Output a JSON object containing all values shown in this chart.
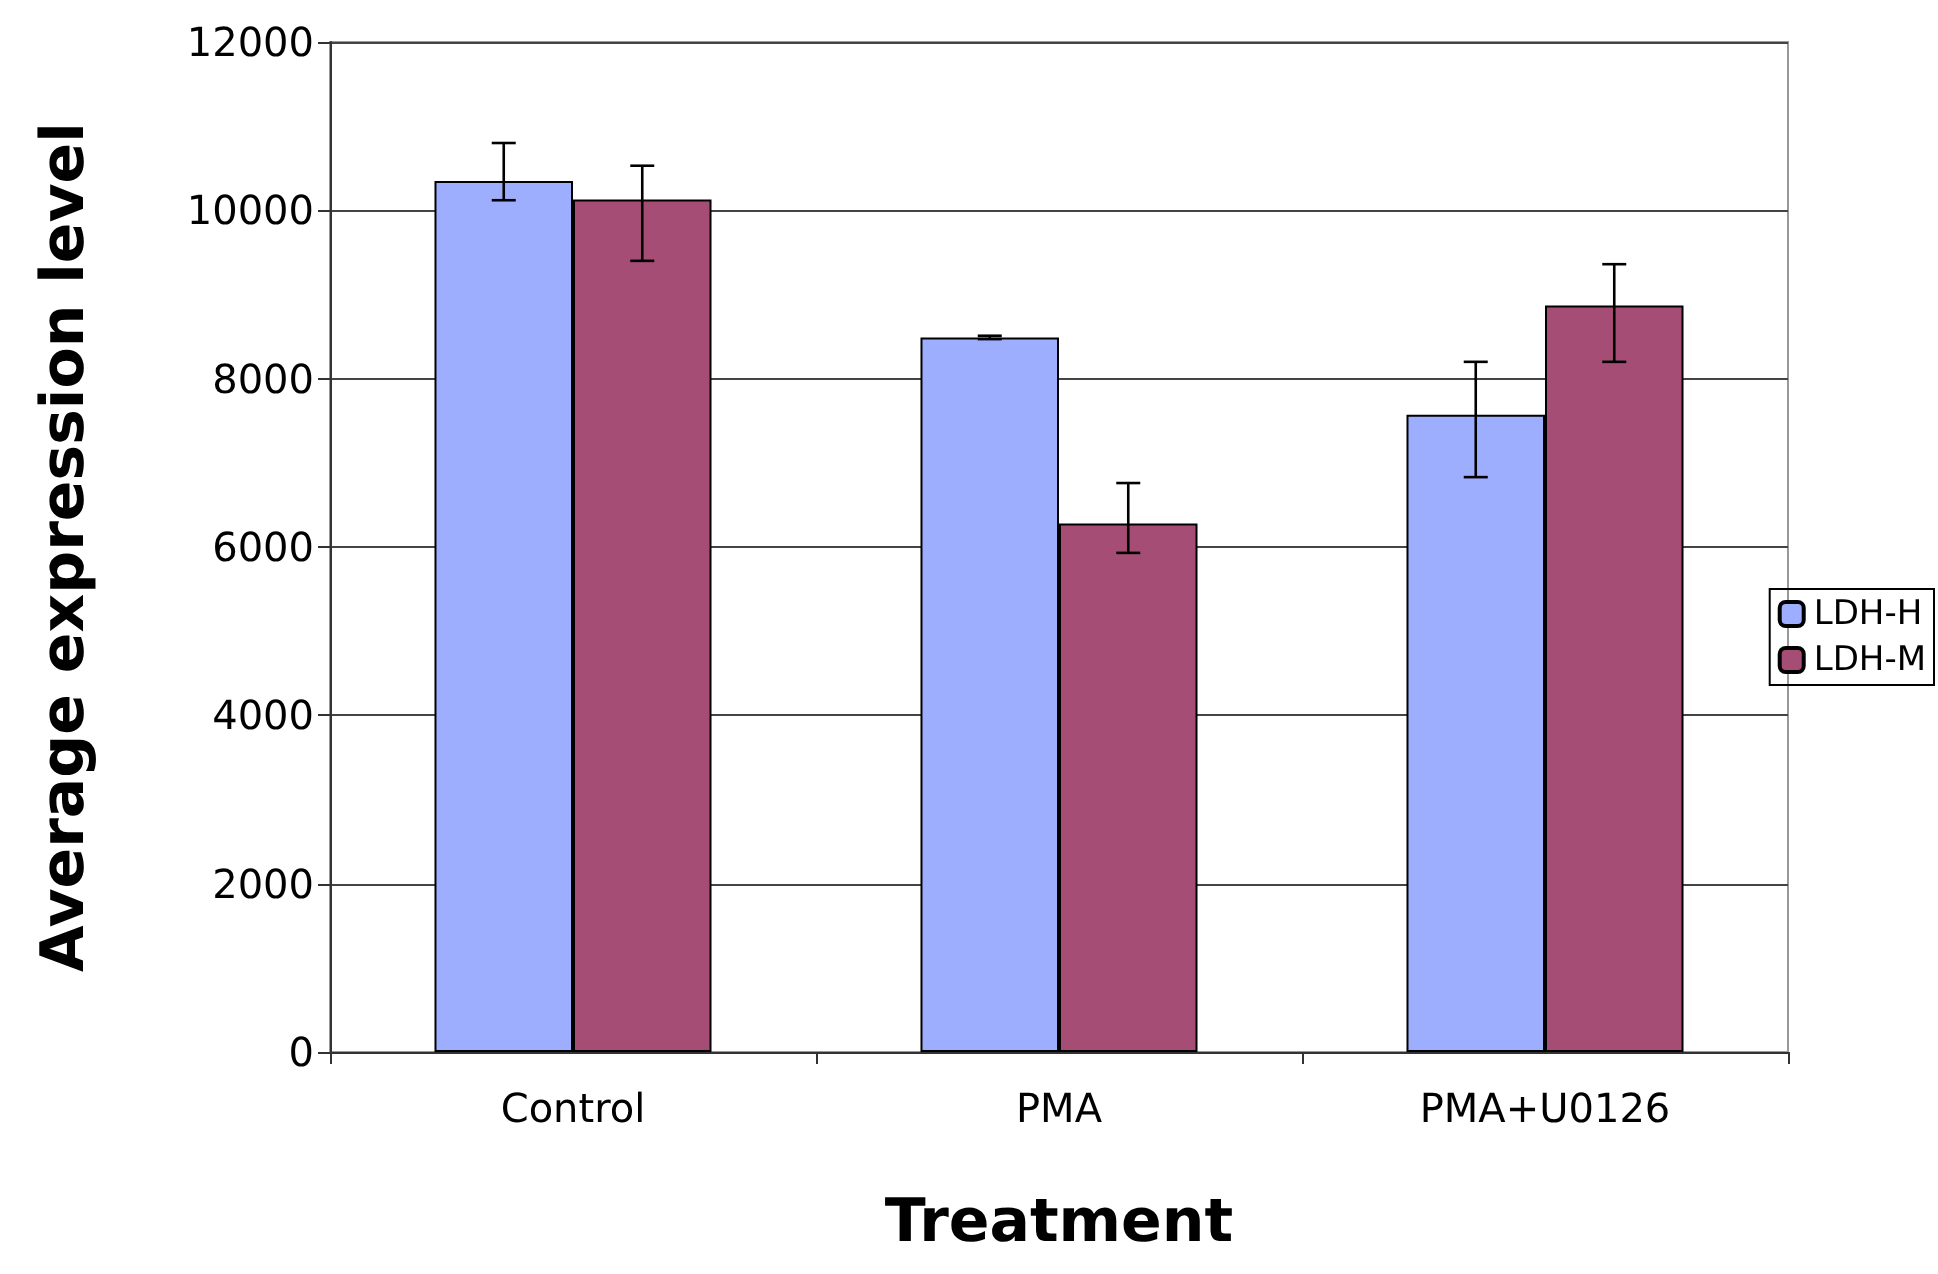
{
  "chart_data": {
    "type": "bar",
    "xlabel": "Treatment",
    "ylabel": "Average expression level",
    "categories": [
      "Control",
      "PMA",
      "PMA+U0126"
    ],
    "series": [
      {
        "name": "LDH-H",
        "color": "#9eaeff",
        "values": [
          10350,
          8490,
          7570
        ],
        "errors": [
          [
            10120,
            10800
          ],
          [
            8470,
            8510
          ],
          [
            6830,
            8200
          ]
        ]
      },
      {
        "name": "LDH-M",
        "color": "#a64d75",
        "values": [
          10130,
          6280,
          8870
        ],
        "errors": [
          [
            9400,
            10530
          ],
          [
            5930,
            6760
          ],
          [
            8200,
            9360
          ]
        ]
      }
    ],
    "ylim": [
      0,
      12000
    ],
    "yticks": [
      0,
      2000,
      4000,
      6000,
      8000,
      10000,
      12000
    ],
    "grid": "y",
    "legend": "right"
  }
}
